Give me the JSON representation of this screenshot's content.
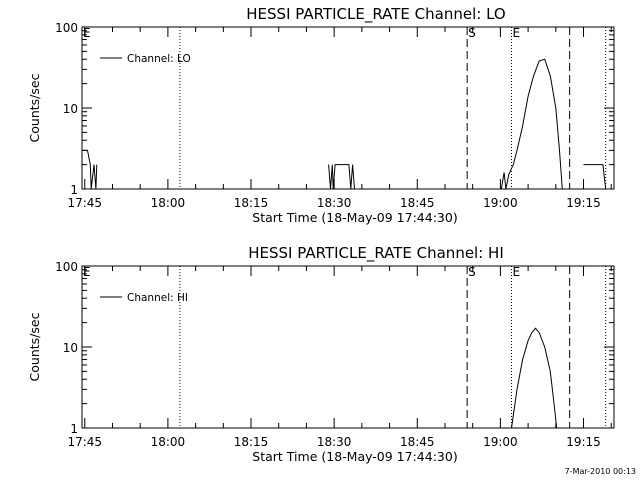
{
  "chart_data": [
    {
      "type": "line",
      "title": "HESSI PARTICLE_RATE Channel: LO",
      "xlabel": "Start Time (18-May-09 17:44:30)",
      "ylabel": "Counts/sec",
      "y_scale": "log",
      "ylim": [
        1,
        100
      ],
      "xlim": [
        "17:44:30",
        "19:20:30"
      ],
      "x_ticks": [
        "17:45",
        "18:00",
        "18:15",
        "18:30",
        "18:45",
        "19:00",
        "19:15"
      ],
      "y_ticks": [
        "1",
        "10",
        "100"
      ],
      "legend": {
        "position": "top-left",
        "label": "Channel: LO"
      },
      "markers": [
        {
          "time": "17:44:30",
          "label": "E",
          "style": "dotted"
        },
        {
          "time": "18:02:10",
          "label": "",
          "style": "dotted"
        },
        {
          "time": "18:54:00",
          "label": "S",
          "style": "dashed"
        },
        {
          "time": "19:02:00",
          "label": "E",
          "style": "dotted"
        },
        {
          "time": "19:12:30",
          "label": "",
          "style": "dashed"
        },
        {
          "time": "19:19:00",
          "label": "",
          "style": "dotted"
        }
      ],
      "series": [
        {
          "name": "Channel: LO",
          "segments": [
            {
              "x": [
                "17:44:30",
                "17:45:30",
                "17:46:00",
                "17:46:10",
                "17:46:40",
                "17:47:00",
                "17:47:10"
              ],
              "y": [
                3,
                3,
                2,
                1,
                2,
                1,
                2
              ]
            },
            {
              "x": [
                "18:29:00",
                "18:29:20",
                "18:29:40",
                "18:29:50",
                "18:30:10",
                "18:30:30",
                "18:32:40",
                "18:33:00",
                "18:33:20",
                "18:33:40"
              ],
              "y": [
                2,
                1,
                2,
                1,
                2,
                2,
                2,
                1,
                2,
                1
              ]
            },
            {
              "x": [
                "19:00:10",
                "19:00:40",
                "19:01:00",
                "19:01:30",
                "19:02:20",
                "19:03:00",
                "19:04:00",
                "19:05:00",
                "19:06:00",
                "19:07:00",
                "19:08:00",
                "19:09:00",
                "19:10:00",
                "19:10:40",
                "19:11:10"
              ],
              "y": [
                1,
                1.6,
                1,
                1.5,
                2,
                3,
                6,
                14,
                25,
                38,
                40,
                25,
                10,
                3,
                1
              ]
            },
            {
              "x": [
                "19:15:00",
                "19:18:30",
                "19:19:00"
              ],
              "y": [
                2,
                2,
                1
              ]
            }
          ]
        }
      ]
    },
    {
      "type": "line",
      "title": "HESSI PARTICLE_RATE Channel: HI",
      "xlabel": "Start Time (18-May-09 17:44:30)",
      "ylabel": "Counts/sec",
      "y_scale": "log",
      "ylim": [
        1,
        100
      ],
      "xlim": [
        "17:44:30",
        "19:20:30"
      ],
      "x_ticks": [
        "17:45",
        "18:00",
        "18:15",
        "18:30",
        "18:45",
        "19:00",
        "19:15"
      ],
      "y_ticks": [
        "1",
        "10",
        "100"
      ],
      "legend": {
        "position": "top-left",
        "label": "Channel: HI"
      },
      "markers": [
        {
          "time": "17:44:30",
          "label": "E",
          "style": "dotted"
        },
        {
          "time": "18:02:10",
          "label": "",
          "style": "dotted"
        },
        {
          "time": "18:54:00",
          "label": "S",
          "style": "dashed"
        },
        {
          "time": "19:02:00",
          "label": "E",
          "style": "dotted"
        },
        {
          "time": "19:12:30",
          "label": "",
          "style": "dashed"
        },
        {
          "time": "19:19:00",
          "label": "",
          "style": "dotted"
        }
      ],
      "series": [
        {
          "name": "Channel: HI",
          "segments": [
            {
              "x": [
                "19:02:00",
                "19:03:00",
                "19:04:00",
                "19:05:00",
                "19:05:40",
                "19:06:20",
                "19:07:00",
                "19:08:00",
                "19:09:00",
                "19:09:40",
                "19:10:10"
              ],
              "y": [
                1,
                3,
                7,
                12,
                15,
                17,
                15,
                10,
                5,
                2,
                1
              ]
            }
          ]
        }
      ]
    }
  ],
  "footer": {
    "date_stamp": "7-Mar-2010 00:13"
  }
}
